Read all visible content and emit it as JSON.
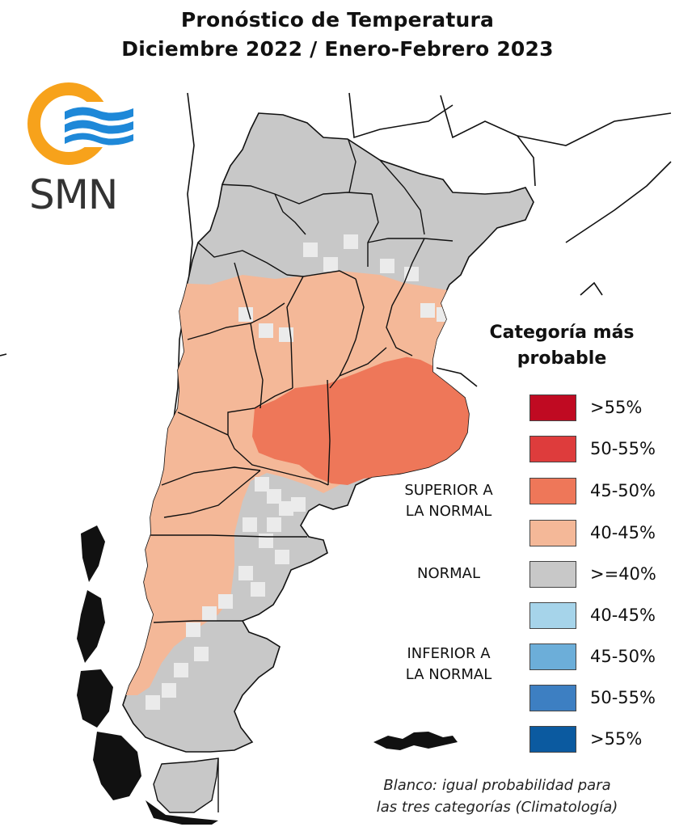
{
  "title": {
    "line1": "Pronóstico de Temperatura",
    "line2": "Diciembre 2022 / Enero-Febrero 2023"
  },
  "logo": {
    "text": "SMN",
    "ring_color": "#F7A21B",
    "wave_color": "#1E88D8"
  },
  "legend": {
    "title_line1": "Categoría más",
    "title_line2": "probable",
    "items": [
      {
        "label": ">55%",
        "color": "#C00A22"
      },
      {
        "label": "50-55%",
        "color": "#DE3C3C"
      },
      {
        "label": "45-50%",
        "color": "#EE7759"
      },
      {
        "label": "40-45%",
        "color": "#F4B898"
      },
      {
        "label": ">=40%",
        "color": "#C8C8C8"
      },
      {
        "label": "40-45%",
        "color": "#A6D4EA"
      },
      {
        "label": "45-50%",
        "color": "#6CAED9"
      },
      {
        "label": "50-55%",
        "color": "#3D7FC2"
      },
      {
        "label": ">55%",
        "color": "#0B5AA0"
      }
    ],
    "groups": {
      "superior_line1": "SUPERIOR A",
      "superior_line2": "LA NORMAL",
      "normal": "NORMAL",
      "inferior_line1": "INFERIOR A",
      "inferior_line2": "LA NORMAL"
    },
    "note_line1": "Blanco: igual probabilidad para",
    "note_line2": "las tres categorías (Climatología)"
  },
  "map_colors": {
    "gray": "#C8C8C8",
    "light": "#F4B898",
    "mid": "#EE7759",
    "white": "#EBEBEB",
    "border": "#111111"
  }
}
